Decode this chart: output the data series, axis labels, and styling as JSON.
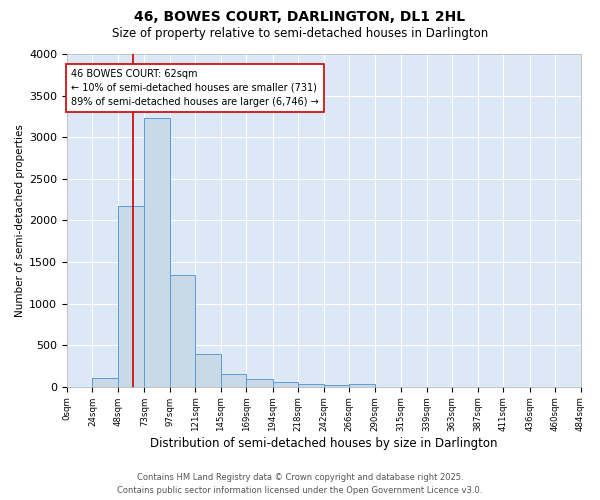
{
  "title_line1": "46, BOWES COURT, DARLINGTON, DL1 2HL",
  "title_line2": "Size of property relative to semi-detached houses in Darlington",
  "xlabel": "Distribution of semi-detached houses by size in Darlington",
  "ylabel": "Number of semi-detached properties",
  "bar_edges": [
    0,
    24,
    48,
    73,
    97,
    121,
    145,
    169,
    194,
    218,
    242,
    266,
    290,
    315,
    339,
    363,
    387,
    411,
    436,
    460,
    484
  ],
  "bar_heights": [
    0,
    110,
    2175,
    3230,
    1340,
    395,
    160,
    100,
    55,
    35,
    20,
    35,
    0,
    0,
    0,
    0,
    0,
    0,
    0,
    0
  ],
  "bar_color": "#c9d9e8",
  "bar_edge_color": "#5b9bd5",
  "background_color": "#ffffff",
  "plot_bg_color": "#dce8f5",
  "grid_color": "#ffffff",
  "annotation_text": "46 BOWES COURT: 62sqm\n← 10% of semi-detached houses are smaller (731)\n89% of semi-detached houses are larger (6,746) →",
  "annotation_box_color": "#ffffff",
  "annotation_box_edgecolor": "#cc0000",
  "property_line_x": 62,
  "property_line_color": "#cc0000",
  "ylim": [
    0,
    4000
  ],
  "yticks": [
    0,
    500,
    1000,
    1500,
    2000,
    2500,
    3000,
    3500,
    4000
  ],
  "tick_labels": [
    "0sqm",
    "24sqm",
    "48sqm",
    "73sqm",
    "97sqm",
    "121sqm",
    "145sqm",
    "169sqm",
    "194sqm",
    "218sqm",
    "242sqm",
    "266sqm",
    "290sqm",
    "315sqm",
    "339sqm",
    "363sqm",
    "387sqm",
    "411sqm",
    "436sqm",
    "460sqm",
    "484sqm"
  ],
  "footer_line1": "Contains HM Land Registry data © Crown copyright and database right 2025.",
  "footer_line2": "Contains public sector information licensed under the Open Government Licence v3.0."
}
